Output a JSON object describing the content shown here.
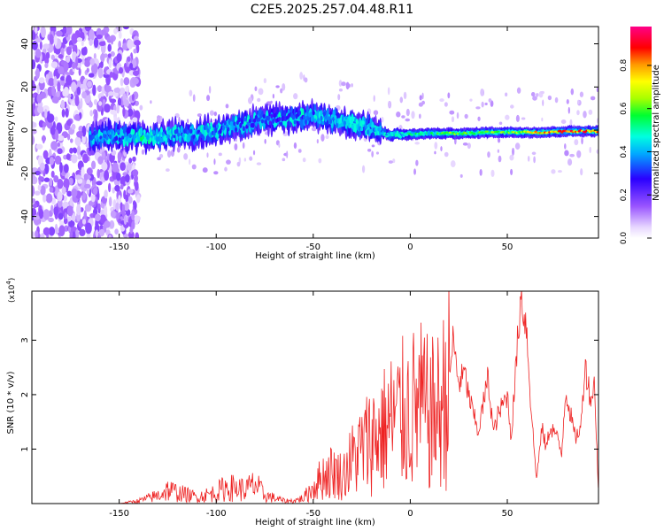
{
  "title": "C2E5.2025.257.04.48.R11",
  "chart_data": [
    {
      "type": "heatmap",
      "xlabel": "Height of straight line (km)",
      "ylabel": "Frequency (Hz)",
      "xlim": [
        -195,
        97
      ],
      "ylim": [
        -50,
        48
      ],
      "xticks": [
        -150,
        -100,
        -50,
        0,
        50
      ],
      "yticks": [
        -40,
        -20,
        0,
        20,
        40
      ],
      "ytick_labels": [
        "-40",
        "-20",
        "0",
        "20",
        "40"
      ],
      "colorbar": {
        "label": "Normalized spectral amplitude",
        "range": [
          0,
          0.98
        ],
        "ticks": [
          0.0,
          0.2,
          0.4,
          0.6,
          0.8
        ],
        "tick_labels": [
          "0.0",
          "0.2",
          "0.4",
          "0.6",
          "0.8"
        ]
      },
      "ridge": {
        "x": [
          -160,
          -150,
          -140,
          -130,
          -120,
          -110,
          -100,
          -90,
          -80,
          -70,
          -60,
          -50,
          -40,
          -30,
          -20,
          -15,
          -10,
          0,
          10,
          20,
          30,
          40,
          50,
          60,
          70,
          80,
          90,
          97
        ],
        "y": [
          -3,
          -3,
          -3,
          -3,
          -2,
          -2,
          0,
          2,
          4,
          5,
          6,
          6,
          5,
          3,
          1,
          -1,
          -2,
          -2,
          -1.5,
          -1.5,
          -1.5,
          -1,
          -1,
          -1,
          -1,
          -0.5,
          -0.5,
          -0.5
        ],
        "amplitude": [
          0.35,
          0.35,
          0.5,
          0.45,
          0.4,
          0.35,
          0.35,
          0.35,
          0.3,
          0.3,
          0.3,
          0.35,
          0.4,
          0.45,
          0.4,
          0.4,
          0.45,
          0.5,
          0.5,
          0.6,
          0.6,
          0.6,
          0.6,
          0.7,
          0.8,
          0.85,
          0.85,
          0.85
        ]
      },
      "noise_region_x": [
        -195,
        -140
      ]
    },
    {
      "type": "line",
      "xlabel": "Height of straight line (km)",
      "ylabel": "SNR (10 * v/v)",
      "multiplier": "(x10",
      "multiplier_exp": "4",
      "multiplier_close": ")",
      "xlim": [
        -195,
        97
      ],
      "ylim": [
        0,
        3.9
      ],
      "xticks": [
        -150,
        -100,
        -50,
        0,
        50
      ],
      "yticks": [
        1,
        2,
        3
      ],
      "color": "#ee2222",
      "series": [
        {
          "x": [
            -195,
            -150,
            -140,
            -130,
            -125,
            -120,
            -110,
            -100,
            -95,
            -90,
            -85,
            -80,
            -75,
            -70,
            -65,
            -60,
            -55,
            -50,
            -45,
            -40,
            -35,
            -30,
            -25,
            -20,
            -15,
            -10,
            -5,
            0,
            5,
            10,
            15,
            20,
            22,
            25,
            28,
            30,
            35,
            40,
            43,
            45,
            50,
            52,
            55,
            57,
            60,
            62,
            65,
            68,
            70,
            72,
            75,
            78,
            80,
            85,
            88,
            90,
            93,
            95,
            97
          ],
          "y": [
            0.0,
            0.0,
            0.05,
            0.15,
            0.25,
            0.2,
            0.12,
            0.2,
            0.3,
            0.28,
            0.25,
            0.35,
            0.15,
            0.1,
            0.05,
            0.05,
            0.1,
            0.3,
            0.5,
            0.6,
            0.5,
            0.8,
            1.0,
            1.2,
            1.3,
            1.5,
            1.6,
            1.7,
            1.8,
            1.6,
            1.7,
            2.2,
            3.0,
            2.2,
            2.4,
            2.0,
            1.3,
            2.3,
            1.3,
            1.6,
            2.0,
            1.2,
            2.8,
            3.85,
            3.2,
            1.9,
            0.45,
            1.4,
            1.0,
            1.4,
            1.3,
            0.9,
            2.1,
            1.2,
            1.4,
            2.6,
            1.9,
            2.2,
            0.2
          ]
        }
      ]
    }
  ]
}
